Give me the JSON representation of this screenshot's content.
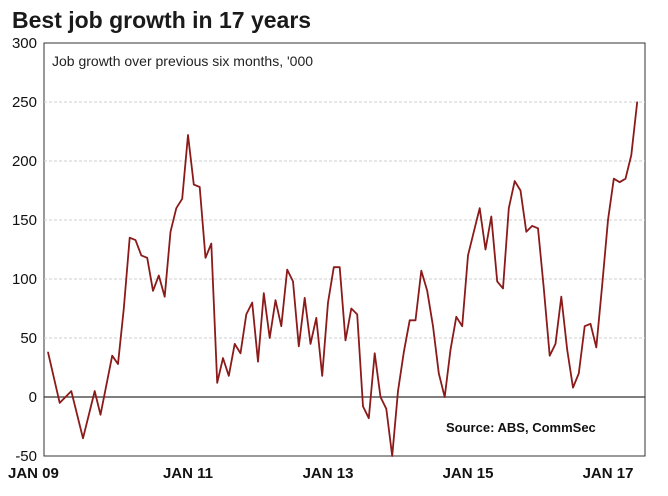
{
  "chart_data": {
    "type": "line",
    "title": "Best job growth in 17 years",
    "subtitle": "Job growth over previous six months, '000",
    "source": "Source: ABS, CommSec",
    "xlabel": "",
    "ylabel": "",
    "ylim": [
      -50,
      300
    ],
    "yticks": [
      300,
      250,
      200,
      150,
      100,
      50,
      0,
      -50
    ],
    "xtick_labels": [
      "JAN 09",
      "JAN 11",
      "JAN 13",
      "JAN 15",
      "JAN 17"
    ],
    "xtick_months": [
      0,
      24,
      48,
      72,
      96
    ],
    "grid": true,
    "color": "#8b1a1a",
    "series": [
      {
        "month_offsets": [
          0,
          2,
          4,
          6,
          8,
          9,
          11,
          12,
          13,
          14,
          15,
          16,
          17,
          18,
          19,
          20,
          21,
          22,
          23,
          24,
          25,
          26,
          27,
          28,
          29,
          30,
          31,
          32,
          33,
          34,
          35,
          36,
          37,
          38,
          39,
          40,
          41,
          42,
          43,
          44,
          45,
          46,
          47,
          48,
          49,
          50,
          51,
          52,
          53,
          54,
          55,
          56,
          57,
          58,
          59,
          60,
          61,
          62,
          63,
          64,
          65,
          66,
          67,
          68,
          69,
          70,
          71,
          72,
          73,
          74,
          75,
          76,
          77,
          78,
          79,
          80,
          81,
          82,
          83,
          84,
          85,
          86,
          87,
          88,
          89,
          90,
          91,
          92,
          93,
          94,
          95,
          96,
          97,
          98,
          99,
          100
        ],
        "values": [
          38,
          -5,
          5,
          -35,
          5,
          -15,
          35,
          28,
          75,
          135,
          133,
          120,
          118,
          90,
          103,
          85,
          140,
          160,
          168,
          222,
          180,
          178,
          118,
          130,
          12,
          33,
          18,
          45,
          37,
          70,
          80,
          30,
          88,
          50,
          82,
          60,
          108,
          98,
          43,
          84,
          45,
          67,
          18,
          80,
          110,
          110,
          48,
          75,
          70,
          -8,
          -18,
          37,
          0,
          -10,
          -50,
          5,
          38,
          65,
          65,
          107,
          90,
          60,
          20,
          0,
          40,
          68,
          60,
          120,
          140,
          160,
          125,
          153,
          98,
          92,
          160,
          183,
          175,
          140,
          145,
          143,
          92,
          35,
          45,
          85,
          40,
          8,
          20,
          60,
          62,
          42,
          95,
          150,
          185,
          182,
          185,
          205
        ],
        "final_value": 250
      }
    ]
  }
}
